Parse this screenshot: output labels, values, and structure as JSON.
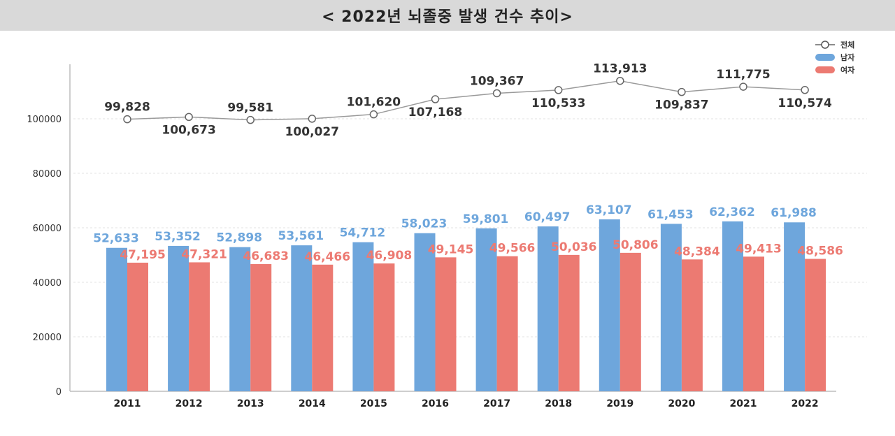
{
  "colors": {
    "male": "#6ea6dc",
    "female": "#ec7a72",
    "total_line": "#9a9a9a",
    "grid": "#e3e3e3",
    "title_bg": "#d9d9d9"
  },
  "chart_data": {
    "type": "bar",
    "title": "< 2022년 뇌졸중 발생 건수 추이>",
    "xlabel": "",
    "ylabel": "",
    "ylim": [
      0,
      120000
    ],
    "y_ticks": [
      0,
      20000,
      40000,
      60000,
      80000,
      100000
    ],
    "grid": true,
    "legend_position": "top-right",
    "categories": [
      "2011",
      "2012",
      "2013",
      "2014",
      "2015",
      "2016",
      "2017",
      "2018",
      "2019",
      "2020",
      "2021",
      "2022"
    ],
    "series": [
      {
        "name": "전체",
        "kind": "line",
        "values": [
          99828,
          100673,
          99581,
          100027,
          101620,
          107168,
          109367,
          110533,
          113913,
          109837,
          111775,
          110574
        ],
        "labels": [
          "99,828",
          "100,673",
          "99,581",
          "100,027",
          "101,620",
          "107,168",
          "109,367",
          "110,533",
          "113,913",
          "109,837",
          "111,775",
          "110,574"
        ]
      },
      {
        "name": "남자",
        "kind": "bar",
        "values": [
          52633,
          53352,
          52898,
          53561,
          54712,
          58023,
          59801,
          60497,
          63107,
          61453,
          62362,
          61988
        ],
        "labels": [
          "52,633",
          "53,352",
          "52,898",
          "53,561",
          "54,712",
          "58,023",
          "59,801",
          "60,497",
          "63,107",
          "61,453",
          "62,362",
          "61,988"
        ]
      },
      {
        "name": "여자",
        "kind": "bar",
        "values": [
          47195,
          47321,
          46683,
          46466,
          46908,
          49145,
          49566,
          50036,
          50806,
          48384,
          49413,
          48586
        ],
        "labels": [
          "47,195",
          "47,321",
          "46,683",
          "46,466",
          "46,908",
          "49,145",
          "49,566",
          "50,036",
          "50,806",
          "48,384",
          "49,413",
          "48,586"
        ]
      }
    ]
  }
}
